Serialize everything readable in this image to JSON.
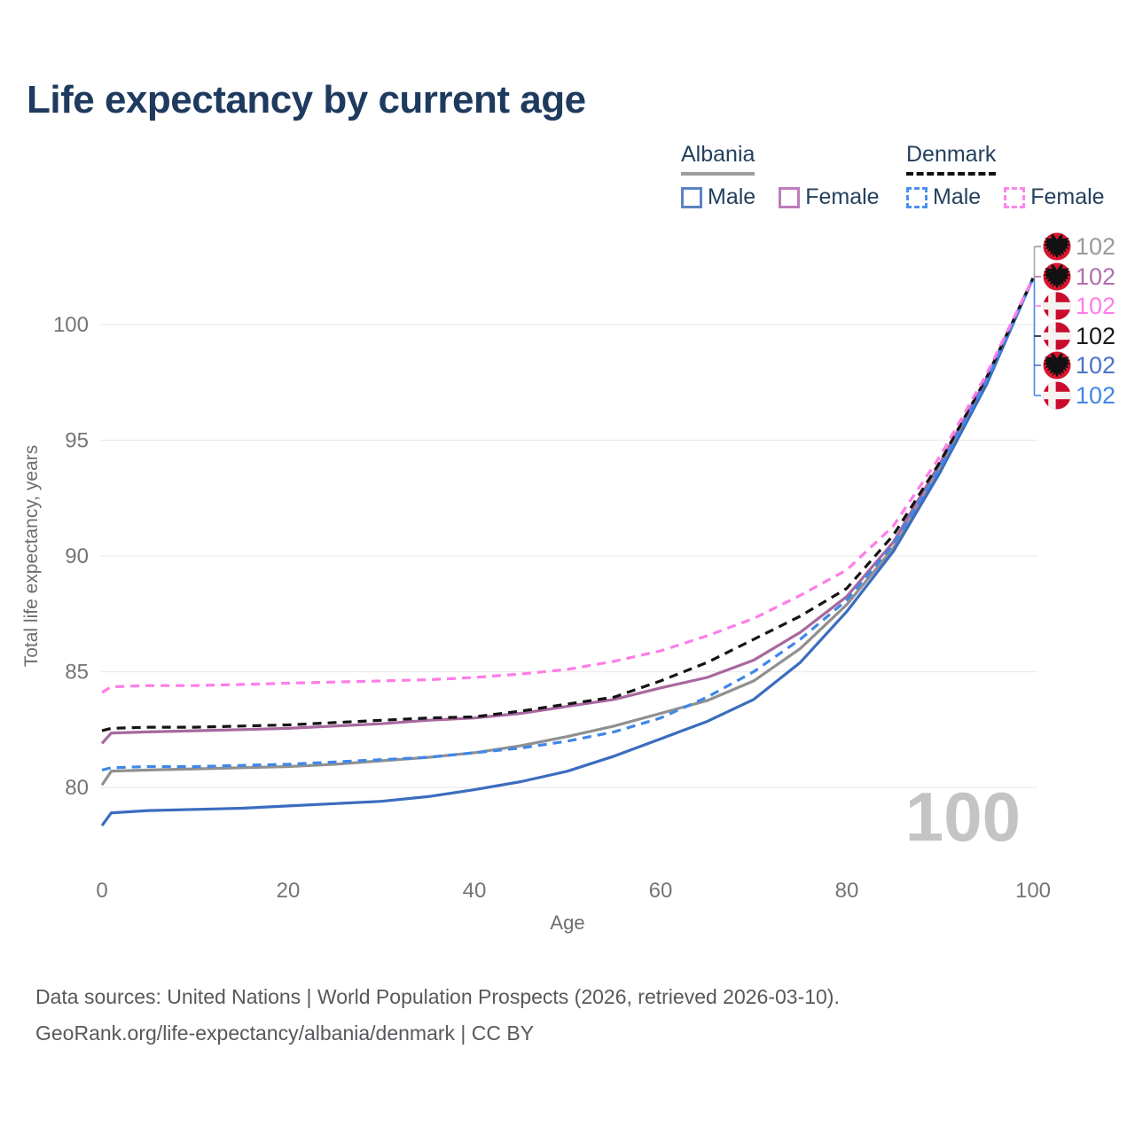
{
  "header": {
    "title": "Life expectancy by current age"
  },
  "legend": {
    "albania": {
      "label": "Albania",
      "male": "Male",
      "female": "Female"
    },
    "denmark": {
      "label": "Denmark",
      "male": "Male",
      "female": "Female"
    }
  },
  "chart_data": {
    "type": "line",
    "title": "Life expectancy by current age",
    "xlabel": "Age",
    "ylabel": "Total life expectancy, years",
    "xlim": [
      0,
      100
    ],
    "ylim": [
      77,
      103
    ],
    "xticks": [
      0,
      20,
      40,
      60,
      80,
      100
    ],
    "yticks": [
      80,
      85,
      90,
      95,
      100
    ],
    "grid": "horizontal",
    "legend_position": "top-right",
    "hover_age_label": "100",
    "x": [
      0,
      1,
      5,
      10,
      15,
      20,
      25,
      30,
      35,
      40,
      45,
      50,
      55,
      60,
      65,
      70,
      75,
      80,
      85,
      90,
      95,
      100
    ],
    "series": [
      {
        "name": "Albania Total",
        "country": "albania",
        "sex": "total",
        "style": "solid",
        "color": "#909090",
        "values": [
          80.1,
          80.7,
          80.75,
          80.8,
          80.85,
          80.9,
          81.0,
          81.15,
          81.3,
          81.5,
          81.8,
          82.2,
          82.65,
          83.2,
          83.75,
          84.6,
          86.0,
          87.9,
          90.35,
          93.75,
          97.5,
          102
        ]
      },
      {
        "name": "Albania Female",
        "country": "albania",
        "sex": "female",
        "style": "solid",
        "color": "#a8679f",
        "values": [
          81.9,
          82.35,
          82.4,
          82.45,
          82.5,
          82.55,
          82.65,
          82.75,
          82.9,
          83.0,
          83.2,
          83.5,
          83.8,
          84.3,
          84.75,
          85.5,
          86.7,
          88.25,
          90.6,
          94.0,
          97.65,
          102
        ]
      },
      {
        "name": "Albania Male",
        "country": "albania",
        "sex": "male",
        "style": "solid",
        "color": "#3b6cbf",
        "values": [
          78.35,
          78.9,
          79.0,
          79.05,
          79.1,
          79.2,
          79.3,
          79.4,
          79.6,
          79.9,
          80.25,
          80.7,
          81.35,
          82.1,
          82.85,
          83.8,
          85.4,
          87.6,
          90.2,
          93.6,
          97.4,
          102
        ]
      },
      {
        "name": "Denmark Total",
        "country": "denmark",
        "sex": "total",
        "style": "dashed",
        "color": "#141414",
        "values": [
          82.45,
          82.55,
          82.6,
          82.6,
          82.65,
          82.7,
          82.8,
          82.9,
          83.0,
          83.05,
          83.3,
          83.6,
          83.9,
          84.6,
          85.4,
          86.4,
          87.4,
          88.6,
          90.9,
          94.05,
          97.7,
          102
        ]
      },
      {
        "name": "Denmark Male",
        "country": "denmark",
        "sex": "male",
        "style": "dashed",
        "color": "#3f87e8",
        "values": [
          80.75,
          80.85,
          80.9,
          80.9,
          80.95,
          81.0,
          81.1,
          81.2,
          81.3,
          81.5,
          81.7,
          82.0,
          82.4,
          83.0,
          83.9,
          85.0,
          86.4,
          88.1,
          90.5,
          93.8,
          97.55,
          102
        ]
      },
      {
        "name": "Denmark Female",
        "country": "denmark",
        "sex": "female",
        "style": "dashed",
        "color": "#ff7ce8",
        "values": [
          84.1,
          84.35,
          84.4,
          84.4,
          84.45,
          84.5,
          84.55,
          84.6,
          84.65,
          84.75,
          84.9,
          85.1,
          85.45,
          85.9,
          86.55,
          87.3,
          88.3,
          89.4,
          91.3,
          94.3,
          97.85,
          102
        ]
      }
    ],
    "end_labels": [
      {
        "flag": "albania",
        "series": "Albania Total",
        "color": "#9a9a9a",
        "value": "102"
      },
      {
        "flag": "albania",
        "series": "Albania Female",
        "color": "#b06fae",
        "value": "102"
      },
      {
        "flag": "denmark",
        "series": "Denmark Female",
        "color": "#ff7ce8",
        "value": "102"
      },
      {
        "flag": "denmark",
        "series": "Denmark Total",
        "color": "#1a1a1a",
        "value": "102"
      },
      {
        "flag": "albania",
        "series": "Albania Male",
        "color": "#4a73c8",
        "value": "102"
      },
      {
        "flag": "denmark",
        "series": "Denmark Male",
        "color": "#3f87e8",
        "value": "102"
      }
    ]
  },
  "footer": {
    "line1": "Data sources: United Nations | World Population Prospects (2026, retrieved 2026-03-10).",
    "line2": "GeoRank.org/life-expectancy/albania/denmark | CC BY"
  }
}
